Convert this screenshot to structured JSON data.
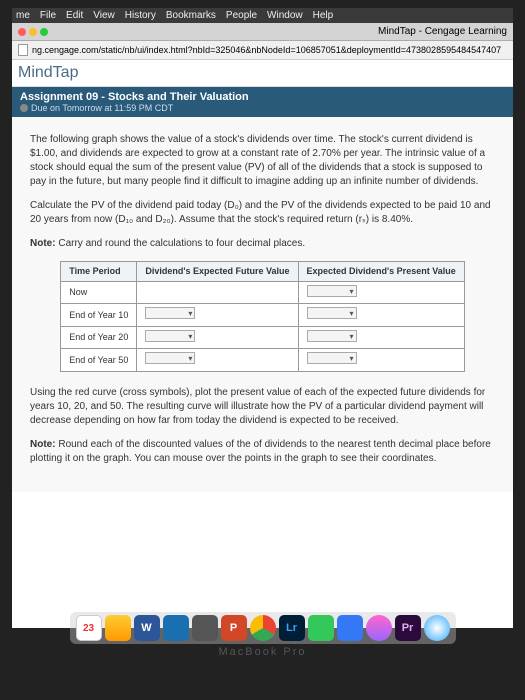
{
  "menubar": {
    "items": [
      "me",
      "File",
      "Edit",
      "View",
      "History",
      "Bookmarks",
      "People",
      "Window",
      "Help"
    ]
  },
  "tab": {
    "title": "MindTap - Cengage Learning"
  },
  "url": "ng.cengage.com/static/nb/ui/index.html?nbId=325046&nbNodeId=106857051&deploymentId=4738028595484547407",
  "logo": "MindTap",
  "assignment": {
    "title": "Assignment 09 - Stocks and Their Valuation",
    "due": "Due on Tomorrow at 11:59 PM CDT"
  },
  "para1": "The following graph shows the value of a stock's dividends over time. The stock's current dividend is $1.00, and dividends are expected to grow at a constant rate of 2.70% per year. The intrinsic value of a stock should equal the sum of the present value (PV) of all of the dividends that a stock is supposed to pay in the future, but many people find it difficult to imagine adding up an infinite number of dividends.",
  "para2": "Calculate the PV of the dividend paid today (D₀) and the PV of the dividends expected to be paid 10 and 20 years from now (D₁₀ and D₂₀). Assume that the stock's required return (rₛ) is 8.40%.",
  "note1_label": "Note:",
  "note1": " Carry and round the calculations to four decimal places.",
  "table": {
    "headers": [
      "Time Period",
      "Dividend's Expected Future Value",
      "Expected Dividend's Present Value"
    ],
    "rows": [
      "Now",
      "End of Year 10",
      "End of Year 20",
      "End of Year 50"
    ]
  },
  "para3": "Using the red curve (cross symbols), plot the present value of each of the expected future dividends for years 10, 20, and 50. The resulting curve will illustrate how the PV of a particular dividend payment will decrease depending on how far from today the dividend is expected to be received.",
  "note2_label": "Note:",
  "note2": " Round each of the discounted values of the of dividends to the nearest tenth decimal place before plotting it on the graph. You can mouse over the points in the graph to see their coordinates.",
  "dock": {
    "cal": "23",
    "word": "W",
    "pp": "P",
    "lr": "Lr",
    "pr": "Pr"
  },
  "bezel": "MacBook Pro"
}
